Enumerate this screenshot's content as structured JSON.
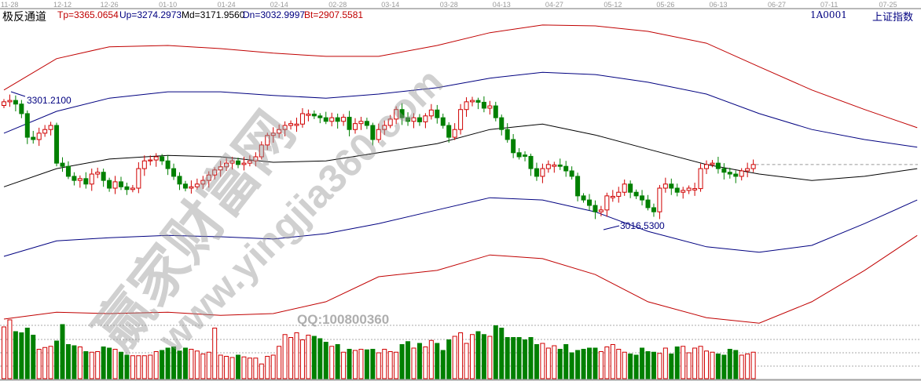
{
  "header": {
    "indicator_name": "极反通道",
    "tp": "Tp=3365.0654",
    "up": "Up=3274.2973",
    "md": "Md=3171.9560",
    "dn": "Dn=3032.9997",
    "bt": "Bt=2907.5581",
    "symbol": "1A0001",
    "symbol_name": "上证指数"
  },
  "colors": {
    "tp": "#c00000",
    "up": "#000080",
    "md": "#000000",
    "dn": "#000080",
    "bt": "#c00000",
    "candle_up": "#d00000",
    "candle_down": "#008000"
  },
  "watermark": {
    "cn": "赢家财富网",
    "url": "www.yingjia360.com",
    "qq": "QQ:100800360"
  },
  "chart_data": {
    "type": "candlestick",
    "x_ticks": [
      {
        "label": "11-28",
        "index": 0
      },
      {
        "label": "12-12",
        "index": 9
      },
      {
        "label": "12-26",
        "index": 17
      },
      {
        "label": "01-10",
        "index": 27
      },
      {
        "label": "01-24",
        "index": 37
      },
      {
        "label": "02-14",
        "index": 46
      },
      {
        "label": "02-28",
        "index": 56
      },
      {
        "label": "03-14",
        "index": 65
      },
      {
        "label": "03-28",
        "index": 75
      },
      {
        "label": "04-13",
        "index": 84
      },
      {
        "label": "04-27",
        "index": 93
      },
      {
        "label": "05-12",
        "index": 103
      },
      {
        "label": "05-26",
        "index": 112
      },
      {
        "label": "06-13",
        "index": 121
      },
      {
        "label": "06-27",
        "index": 131
      },
      {
        "label": "07-11",
        "index": 140
      },
      {
        "label": "07-25",
        "index": 150
      }
    ],
    "closes": [
      3298,
      3301,
      3293,
      3272,
      3220,
      3215,
      3229,
      3237,
      3246,
      3163,
      3156,
      3134,
      3125,
      3129,
      3117,
      3139,
      3143,
      3125,
      3108,
      3122,
      3111,
      3105,
      3108,
      3151,
      3168,
      3170,
      3177,
      3168,
      3151,
      3134,
      3117,
      3108,
      3111,
      3117,
      3125,
      3137,
      3148,
      3155,
      3163,
      3168,
      3160,
      3163,
      3168,
      3177,
      3203,
      3224,
      3229,
      3237,
      3246,
      3250,
      3249,
      3272,
      3271,
      3267,
      3263,
      3255,
      3263,
      3255,
      3264,
      3237,
      3250,
      3255,
      3246,
      3215,
      3237,
      3246,
      3260,
      3281,
      3263,
      3255,
      3263,
      3254,
      3267,
      3280,
      3263,
      3246,
      3220,
      3237,
      3281,
      3298,
      3301,
      3297,
      3284,
      3289,
      3263,
      3237,
      3215,
      3186,
      3177,
      3178,
      3151,
      3134,
      3151,
      3160,
      3159,
      3156,
      3146,
      3134,
      3091,
      3082,
      3070,
      3056,
      3060,
      3091,
      3090,
      3099,
      3117,
      3099,
      3091,
      3082,
      3065,
      3056,
      3108,
      3117,
      3108,
      3099,
      3103,
      3108,
      3107,
      3151,
      3160,
      3163,
      3151,
      3143,
      3139,
      3134,
      3146,
      3151,
      3160
    ],
    "volume": [
      88,
      100,
      80,
      78,
      86,
      74,
      50,
      53,
      55,
      64,
      92,
      58,
      56,
      54,
      46,
      45,
      46,
      54,
      52,
      50,
      45,
      40,
      39,
      39,
      39,
      40,
      46,
      48,
      52,
      54,
      47,
      52,
      50,
      47,
      42,
      45,
      86,
      40,
      38,
      36,
      40,
      37,
      35,
      35,
      25,
      38,
      40,
      55,
      75,
      70,
      78,
      66,
      74,
      72,
      68,
      62,
      55,
      58,
      45,
      50,
      48,
      50,
      49,
      50,
      44,
      50,
      46,
      45,
      58,
      63,
      52,
      60,
      54,
      65,
      60,
      48,
      66,
      72,
      78,
      60,
      75,
      80,
      75,
      72,
      90,
      86,
      70,
      70,
      70,
      66,
      70,
      58,
      60,
      52,
      56,
      50,
      58,
      44,
      48,
      50,
      52,
      52,
      46,
      54,
      58,
      50,
      45,
      42,
      40,
      52,
      46,
      45,
      43,
      52,
      42,
      54,
      55,
      44,
      52,
      55,
      47,
      45,
      42,
      40,
      50,
      48,
      40,
      42,
      45
    ],
    "annotations": {
      "high": "3301.2100",
      "low": "3016.5300"
    },
    "bands_x": [
      0,
      9,
      18,
      28,
      37,
      46,
      55,
      64,
      74,
      83,
      92,
      101,
      110,
      120,
      129,
      138,
      147,
      156
    ],
    "bands": {
      "tp": [
        3324,
        3393,
        3419,
        3422,
        3415,
        3405,
        3398,
        3398,
        3422,
        3450,
        3467,
        3465,
        3453,
        3427,
        3375,
        3324,
        3281,
        3241
      ],
      "up": [
        3229,
        3277,
        3306,
        3320,
        3320,
        3312,
        3306,
        3315,
        3329,
        3350,
        3363,
        3358,
        3341,
        3315,
        3272,
        3237,
        3215,
        3198
      ],
      "md": [
        3111,
        3151,
        3172,
        3180,
        3177,
        3165,
        3168,
        3186,
        3206,
        3237,
        3249,
        3225,
        3194,
        3160,
        3139,
        3125,
        3134,
        3151
      ],
      "dn": [
        2958,
        2992,
        2999,
        3004,
        3001,
        2996,
        3008,
        3030,
        3060,
        3087,
        3082,
        3056,
        3013,
        2979,
        2967,
        2982,
        3030,
        3082
      ],
      "bt": [
        2820,
        2835,
        2832,
        2835,
        2828,
        2832,
        2858,
        2913,
        2927,
        2961,
        2953,
        2918,
        2858,
        2823,
        2811,
        2858,
        2927,
        3004
      ]
    }
  }
}
